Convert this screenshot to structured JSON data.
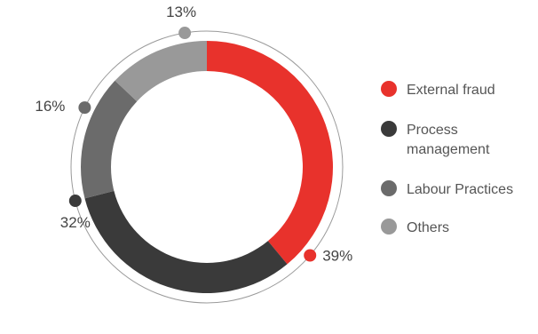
{
  "chart_data": {
    "type": "donut",
    "title": "",
    "series": [
      {
        "name": "External fraud",
        "value": 39,
        "label": "39%",
        "color": "#e8322c"
      },
      {
        "name": "Process management",
        "value": 32,
        "label": "32%",
        "color": "#3a3a3a"
      },
      {
        "name": "Labour Practices",
        "value": 16,
        "label": "16%",
        "color": "#6b6b6b"
      },
      {
        "name": "Others",
        "value": 13,
        "label": "13%",
        "color": "#999999"
      }
    ],
    "legend": {
      "placement": "right",
      "entries": [
        [
          "External fraud"
        ],
        [
          "Process",
          "management"
        ],
        [
          "Labour Practices"
        ],
        [
          "Others"
        ]
      ]
    }
  }
}
